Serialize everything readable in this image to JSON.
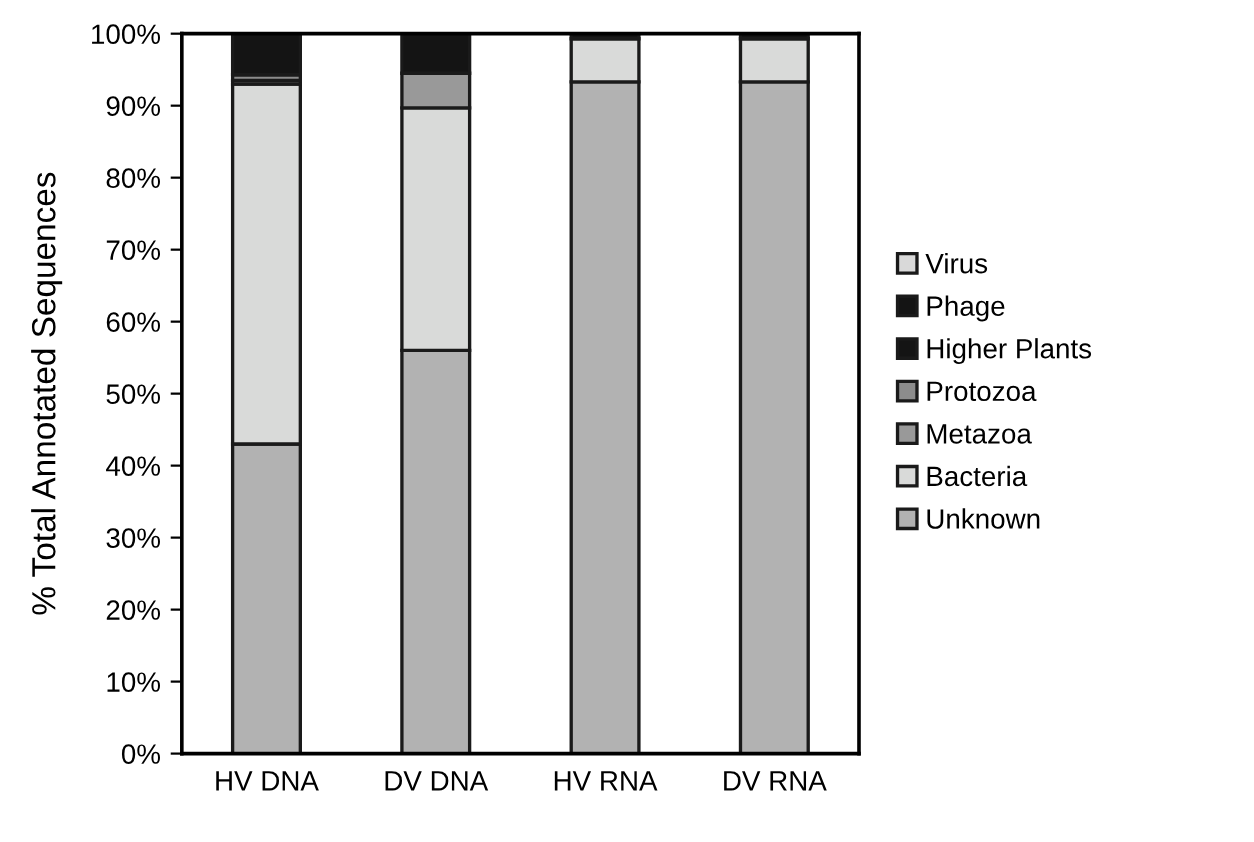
{
  "chart_data": {
    "type": "bar",
    "stacked": true,
    "ylabel": "% Total Annotated Sequences",
    "categories": [
      "HV DNA",
      "DV DNA",
      "HV RNA",
      "DV RNA"
    ],
    "series": [
      {
        "name": "Unknown",
        "color": "#b2b2b2",
        "values": [
          43,
          56,
          93.3,
          93.3
        ]
      },
      {
        "name": "Bacteria",
        "color": "#d9dad9",
        "values": [
          50,
          33.7,
          6,
          6
        ]
      },
      {
        "name": "Metazoa",
        "color": "#999999",
        "values": [
          0.5,
          4.8,
          null,
          null
        ]
      },
      {
        "name": "Protozoa",
        "color": "#8c8c8c",
        "values": [
          0.8,
          null,
          null,
          null
        ]
      },
      {
        "name": "Higher Plants",
        "color": "#141414",
        "values": [
          null,
          null,
          null,
          null
        ]
      },
      {
        "name": "Phage",
        "color": "#141414",
        "values": [
          5.7,
          5.5,
          0.7,
          0.7
        ]
      },
      {
        "name": "Virus",
        "color": "#d9d9d9",
        "values": [
          null,
          null,
          null,
          null
        ]
      }
    ],
    "ylim": [
      0,
      100
    ],
    "yticks": [
      {
        "value": 0,
        "label": "0%"
      },
      {
        "value": 10,
        "label": "10%"
      },
      {
        "value": 20,
        "label": "20%"
      },
      {
        "value": 30,
        "label": "30%"
      },
      {
        "value": 40,
        "label": "40%"
      },
      {
        "value": 50,
        "label": "50%"
      },
      {
        "value": 60,
        "label": "60%"
      },
      {
        "value": 70,
        "label": "70%"
      },
      {
        "value": 80,
        "label": "80%"
      },
      {
        "value": 90,
        "label": "90%"
      },
      {
        "value": 100,
        "label": "100%"
      }
    ],
    "grid": false,
    "legend": "right"
  }
}
